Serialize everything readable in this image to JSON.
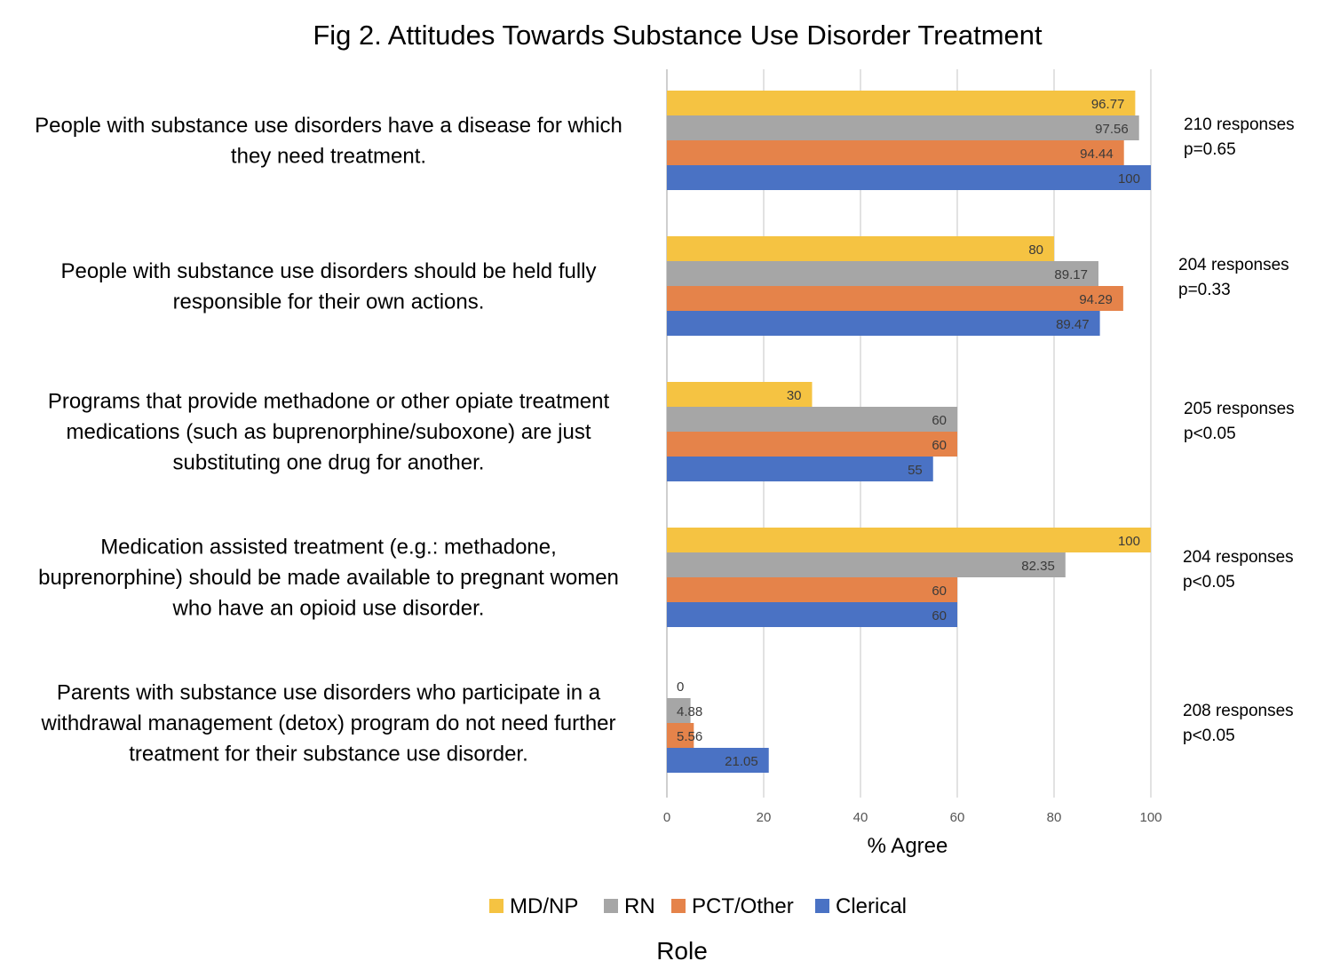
{
  "chart_data": {
    "type": "bar",
    "orientation": "horizontal",
    "title": "Fig 2. Attitudes Towards Substance Use Disorder Treatment",
    "xlabel": "% Agree",
    "legend_title": "Role",
    "legend_position": "bottom",
    "xlim": [
      0,
      100
    ],
    "xticks": [
      "0",
      "20",
      "40",
      "60",
      "80",
      "100"
    ],
    "grid": true,
    "categories": [
      {
        "lines": [
          "People with substance use disorders have a disease for which",
          "they need treatment."
        ],
        "responses": "210 responses",
        "p": "p=0.65"
      },
      {
        "lines": [
          "People with substance use disorders should be held fully",
          "responsible for their own actions."
        ],
        "responses": "204 responses",
        "p": "p=0.33"
      },
      {
        "lines": [
          "Programs that provide methadone or other opiate treatment",
          "medications (such as buprenorphine/suboxone) are just",
          "substituting one drug for another."
        ],
        "responses": "205 responses",
        "p": "p<0.05"
      },
      {
        "lines": [
          "Medication assisted treatment (e.g.: methadone,",
          "buprenorphine) should be made available to pregnant women",
          "who have an opioid use disorder."
        ],
        "responses": "204 responses",
        "p": "p<0.05"
      },
      {
        "lines": [
          "Parents with substance use disorders who participate in a",
          "withdrawal management (detox) program do not need further",
          "treatment for their substance use disorder."
        ],
        "responses": "208 responses",
        "p": "p<0.05"
      }
    ],
    "series": [
      {
        "name": "MD/NP",
        "color": "#F5C342",
        "values": [
          96.77,
          80,
          30,
          100,
          0
        ],
        "labels": [
          "96.77",
          "80",
          "30",
          "100",
          "0"
        ]
      },
      {
        "name": "RN",
        "color": "#A6A6A6",
        "values": [
          97.56,
          89.17,
          60,
          82.35,
          4.88
        ],
        "labels": [
          "97.56",
          "89.17",
          "60",
          "82.35",
          "4.88"
        ]
      },
      {
        "name": "PCT/Other",
        "color": "#E5834A",
        "values": [
          94.44,
          94.29,
          60,
          60,
          5.56
        ],
        "labels": [
          "94.44",
          "94.29",
          "60",
          "60",
          "5.56"
        ]
      },
      {
        "name": "Clerical",
        "color": "#4A72C4",
        "values": [
          100,
          89.47,
          55,
          60,
          21.05
        ],
        "labels": [
          "100",
          "89.47",
          "55",
          "60",
          "21.05"
        ]
      }
    ]
  }
}
